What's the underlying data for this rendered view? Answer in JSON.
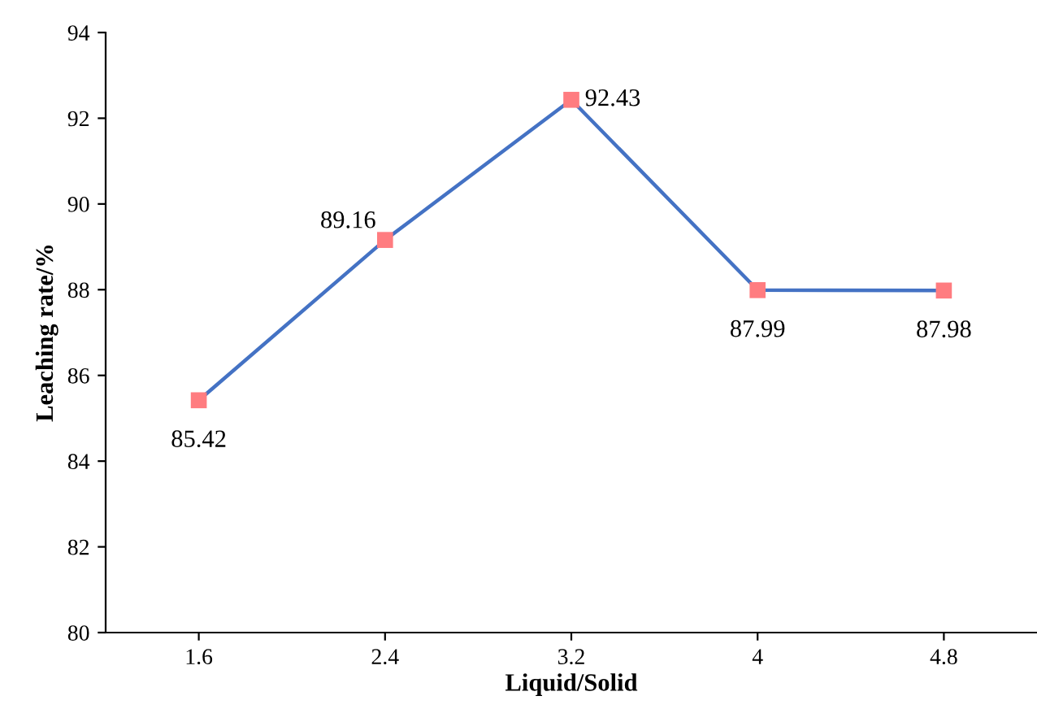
{
  "chart_data": {
    "type": "line",
    "xlabel": "Liquid/Solid",
    "ylabel": "Leaching rate/%",
    "categories": [
      "1.6",
      "2.4",
      "3.2",
      "4",
      "4.8"
    ],
    "series": [
      {
        "color": "#4472c4",
        "colors": [
          "#ff7c80",
          "#ff7c80",
          "#ff7c80",
          "#ff7c80",
          "#ff7c80"
        ],
        "values": [
          85.42,
          89.16,
          92.43,
          87.99,
          87.98
        ]
      }
    ],
    "ylim": [
      80,
      94
    ],
    "yticks": [
      80,
      82,
      84,
      86,
      88,
      90,
      92,
      94
    ],
    "marker": "square",
    "line_style": "solid",
    "grid": false,
    "legend": false,
    "data_labels": true
  }
}
